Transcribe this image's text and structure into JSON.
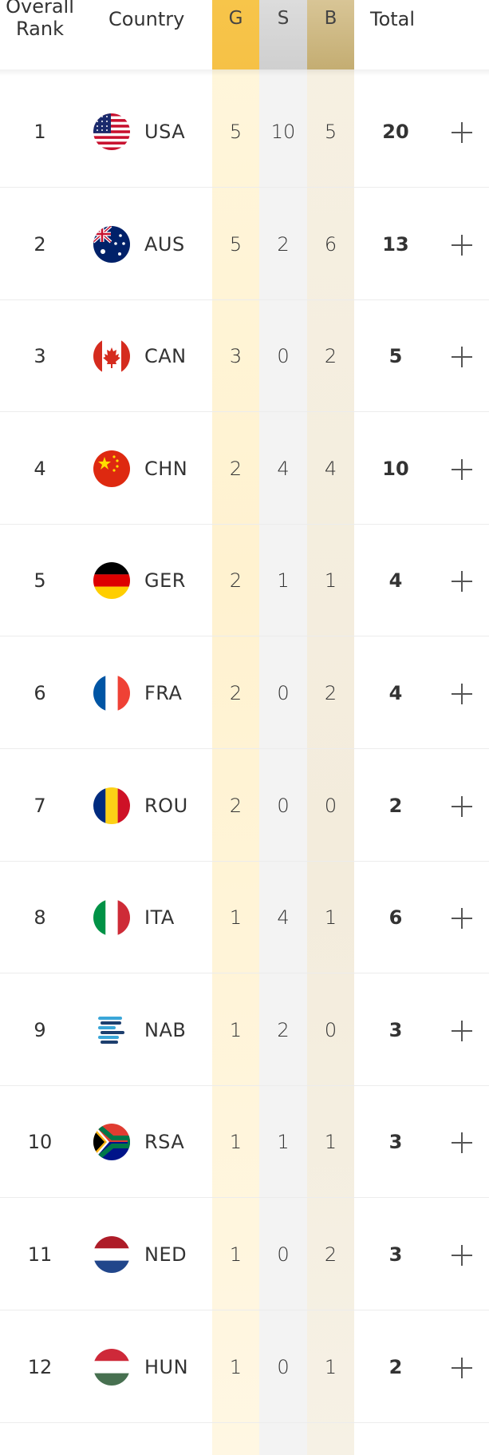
{
  "header": {
    "rank_line1": "Overall",
    "rank_line2": "Rank",
    "country": "Country",
    "gold": "G",
    "silver": "S",
    "bronze": "B",
    "total": "Total"
  },
  "colors": {
    "gold_header": "#f7c54a",
    "silver_header": "#d4d4d4",
    "bronze_header": "#cbb57d"
  },
  "icons": {
    "expand": "plus-icon"
  },
  "rows": [
    {
      "rank": "1",
      "code": "USA",
      "g": "5",
      "s": "10",
      "b": "5",
      "total": "20",
      "flag_icon": "usa-flag-icon"
    },
    {
      "rank": "2",
      "code": "AUS",
      "g": "5",
      "s": "2",
      "b": "6",
      "total": "13",
      "flag_icon": "aus-flag-icon"
    },
    {
      "rank": "3",
      "code": "CAN",
      "g": "3",
      "s": "0",
      "b": "2",
      "total": "5",
      "flag_icon": "can-flag-icon"
    },
    {
      "rank": "4",
      "code": "CHN",
      "g": "2",
      "s": "4",
      "b": "4",
      "total": "10",
      "flag_icon": "chn-flag-icon"
    },
    {
      "rank": "5",
      "code": "GER",
      "g": "2",
      "s": "1",
      "b": "1",
      "total": "4",
      "flag_icon": "ger-flag-icon"
    },
    {
      "rank": "6",
      "code": "FRA",
      "g": "2",
      "s": "0",
      "b": "2",
      "total": "4",
      "flag_icon": "fra-flag-icon"
    },
    {
      "rank": "7",
      "code": "ROU",
      "g": "2",
      "s": "0",
      "b": "0",
      "total": "2",
      "flag_icon": "rou-flag-icon"
    },
    {
      "rank": "8",
      "code": "ITA",
      "g": "1",
      "s": "4",
      "b": "1",
      "total": "6",
      "flag_icon": "ita-flag-icon"
    },
    {
      "rank": "9",
      "code": "NAB",
      "g": "1",
      "s": "2",
      "b": "0",
      "total": "3",
      "flag_icon": "nab-flag-icon"
    },
    {
      "rank": "10",
      "code": "RSA",
      "g": "1",
      "s": "1",
      "b": "1",
      "total": "3",
      "flag_icon": "rsa-flag-icon"
    },
    {
      "rank": "11",
      "code": "NED",
      "g": "1",
      "s": "0",
      "b": "2",
      "total": "3",
      "flag_icon": "ned-flag-icon"
    },
    {
      "rank": "12",
      "code": "HUN",
      "g": "1",
      "s": "0",
      "b": "1",
      "total": "2",
      "flag_icon": "hun-flag-icon"
    }
  ]
}
